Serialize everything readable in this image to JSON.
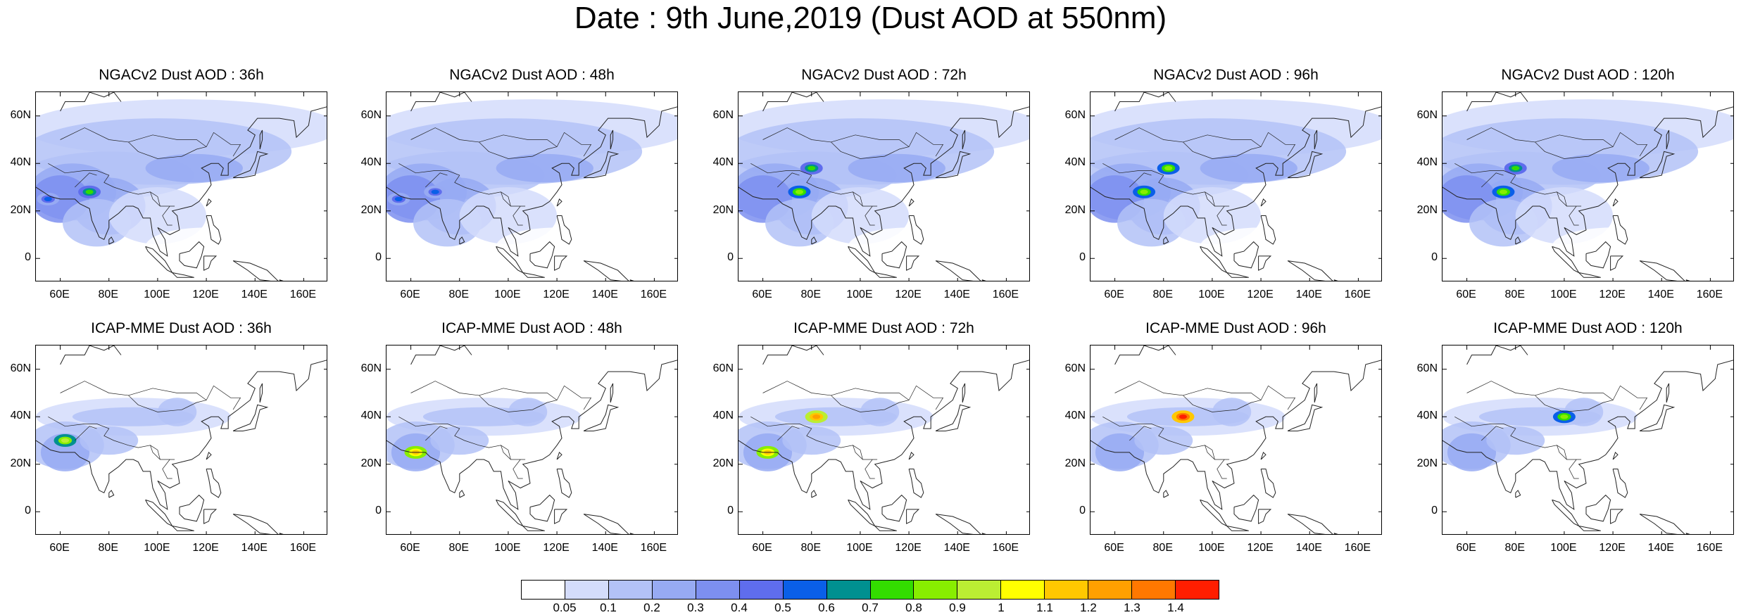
{
  "title": "Date : 9th June,2019 (Dust AOD at 550nm)",
  "panels": [
    {
      "title": "NGACv2 Dust AOD : 36h"
    },
    {
      "title": "NGACv2 Dust AOD : 48h"
    },
    {
      "title": "NGACv2 Dust AOD : 72h"
    },
    {
      "title": "NGACv2 Dust AOD : 96h"
    },
    {
      "title": "NGACv2 Dust AOD : 120h"
    },
    {
      "title": "ICAP-MME Dust AOD : 36h"
    },
    {
      "title": "ICAP-MME Dust AOD : 48h"
    },
    {
      "title": "ICAP-MME Dust AOD : 72h"
    },
    {
      "title": "ICAP-MME Dust AOD : 96h"
    },
    {
      "title": "ICAP-MME Dust AOD : 120h"
    }
  ],
  "axes": {
    "lon_ticks": [
      "60E",
      "80E",
      "100E",
      "120E",
      "140E",
      "160E"
    ],
    "lon_values": [
      60,
      80,
      100,
      120,
      140,
      160
    ],
    "lat_ticks": [
      "60N",
      "40N",
      "20N",
      "0"
    ],
    "lat_values": [
      60,
      40,
      20,
      0
    ],
    "lon_range": [
      50,
      170
    ],
    "lat_range": [
      -10,
      70
    ]
  },
  "colorbar": {
    "labels": [
      "0.05",
      "0.1",
      "0.2",
      "0.3",
      "0.4",
      "0.5",
      "0.6",
      "0.7",
      "0.8",
      "0.9",
      "1",
      "1.1",
      "1.2",
      "1.3",
      "1.4"
    ],
    "colors": [
      "#ffffff",
      "#d4dcfb",
      "#b3c2f7",
      "#97aaf3",
      "#7d8ff0",
      "#5f6ded",
      "#0a5fe8",
      "#009090",
      "#33dd00",
      "#88ee00",
      "#bbee33",
      "#ffff00",
      "#ffc800",
      "#ffa000",
      "#ff7800",
      "#ff1e00"
    ]
  },
  "chart_data": {
    "type": "heatmap",
    "variable": "Dust AOD at 550nm",
    "date": "9th June,2019",
    "panels": [
      {
        "model": "NGACv2",
        "lead": "36h",
        "hotspots": [
          {
            "lon": 72,
            "lat": 28,
            "aod": 0.7
          },
          {
            "lon": 55,
            "lat": 25,
            "aod": 0.45
          }
        ]
      },
      {
        "model": "NGACv2",
        "lead": "48h",
        "hotspots": [
          {
            "lon": 70,
            "lat": 28,
            "aod": 0.5
          },
          {
            "lon": 55,
            "lat": 25,
            "aod": 0.45
          }
        ]
      },
      {
        "model": "NGACv2",
        "lead": "72h",
        "hotspots": [
          {
            "lon": 80,
            "lat": 38,
            "aod": 0.7
          },
          {
            "lon": 75,
            "lat": 28,
            "aod": 0.8
          }
        ]
      },
      {
        "model": "NGACv2",
        "lead": "96h",
        "hotspots": [
          {
            "lon": 82,
            "lat": 38,
            "aod": 0.8
          },
          {
            "lon": 72,
            "lat": 28,
            "aod": 0.8
          }
        ]
      },
      {
        "model": "NGACv2",
        "lead": "120h",
        "hotspots": [
          {
            "lon": 80,
            "lat": 38,
            "aod": 0.7
          },
          {
            "lon": 75,
            "lat": 28,
            "aod": 0.8
          }
        ]
      },
      {
        "model": "ICAP-MME",
        "lead": "36h",
        "hotspots": [
          {
            "lon": 62,
            "lat": 30,
            "aod": 0.9
          }
        ]
      },
      {
        "model": "ICAP-MME",
        "lead": "48h",
        "hotspots": [
          {
            "lon": 62,
            "lat": 25,
            "aod": 1.1
          }
        ]
      },
      {
        "model": "ICAP-MME",
        "lead": "72h",
        "hotspots": [
          {
            "lon": 82,
            "lat": 40,
            "aod": 1.2
          },
          {
            "lon": 62,
            "lat": 25,
            "aod": 1.1
          }
        ]
      },
      {
        "model": "ICAP-MME",
        "lead": "96h",
        "hotspots": [
          {
            "lon": 88,
            "lat": 40,
            "aod": 1.4
          }
        ]
      },
      {
        "model": "ICAP-MME",
        "lead": "120h",
        "hotspots": [
          {
            "lon": 100,
            "lat": 40,
            "aod": 0.8
          }
        ]
      }
    ]
  }
}
